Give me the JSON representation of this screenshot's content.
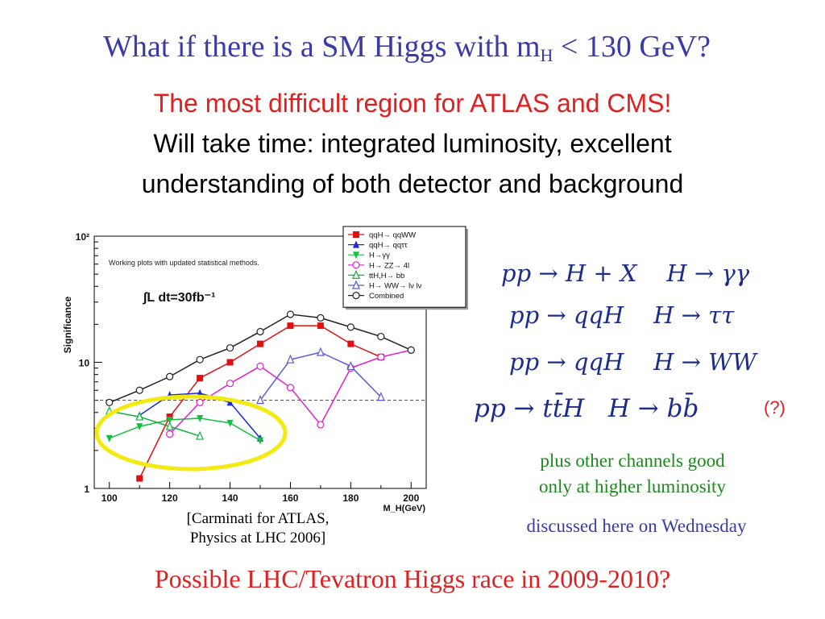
{
  "slide": {
    "title_main": "What if there is a SM Higgs with m",
    "title_sub": "H",
    "title_tail": " < 130 GeV?",
    "line1": "The most difficult region for ATLAS and CMS!",
    "line2": "Will take time: integrated luminosity, excellent",
    "line3": "understanding of both detector and background",
    "caption_line1": "[Carminati for ATLAS,",
    "caption_line2": "Physics at LHC 2006]",
    "channels": [
      {
        "prod": "pp → H + X",
        "decay": "H → γγ"
      },
      {
        "prod": "pp → qqH",
        "decay": "H → ττ"
      },
      {
        "prod": "pp → qqH",
        "decay": "H → WW"
      },
      {
        "prod": "pp → tt̄H",
        "decay": "H → bb̄"
      }
    ],
    "question_mark": "(?)",
    "green_line1": "plus other channels good",
    "green_line2": "only at  higher luminosity",
    "wednesday": "discussed here on Wednesday",
    "bottom": "Possible LHC/Tevatron Higgs race in 2009-2010?"
  },
  "chart_data": {
    "type": "line",
    "annotation": "Working plots with updated statistical methods.",
    "luminosity_label": "∫L dt=30fb⁻¹",
    "xlabel": "M_H(GeV)",
    "ylabel": "Significance",
    "xlim": [
      95,
      205
    ],
    "ylim": [
      1,
      100
    ],
    "yscale": "log",
    "x_ticks": [
      100,
      120,
      140,
      160,
      180,
      200
    ],
    "y_ticks": [
      {
        "v": 1,
        "label": "1"
      },
      {
        "v": 10,
        "label": "10"
      },
      {
        "v": 100,
        "label": "10²"
      }
    ],
    "reference_line": 5,
    "legend_position": "top-right",
    "highlight": "ellipse around low-mass region (100-150 GeV)",
    "series": [
      {
        "name": "qqH→ qqWW",
        "color": "#e01010",
        "marker": "square-filled",
        "x": [
          110,
          120,
          130,
          140,
          150,
          160,
          170,
          180,
          190
        ],
        "y": [
          1.2,
          3.7,
          7.5,
          10,
          14,
          19.5,
          19.5,
          14,
          11
        ]
      },
      {
        "name": "qqH→ qqττ",
        "color": "#1a2ad8",
        "marker": "triangle-up-filled",
        "x": [
          110,
          120,
          130,
          140,
          150
        ],
        "y": [
          3.8,
          5.5,
          5.7,
          4.8,
          2.5
        ]
      },
      {
        "name": "H→γγ",
        "color": "#10c040",
        "marker": "triangle-down-filled",
        "x": [
          100,
          110,
          120,
          130,
          140,
          150
        ],
        "y": [
          2.5,
          3.1,
          3.5,
          3.6,
          3.3,
          2.4
        ]
      },
      {
        "name": "H→ ZZ→ 4l",
        "color": "#e020d0",
        "marker": "circle-open",
        "x": [
          120,
          130,
          140,
          150,
          160,
          170,
          180,
          190,
          200
        ],
        "y": [
          2.7,
          4.8,
          6.8,
          9.3,
          6.3,
          3.2,
          9.0,
          11,
          12.5
        ]
      },
      {
        "name": "ttH,H→ bb",
        "color": "#10b040",
        "marker": "triangle-up-open",
        "x": [
          100,
          110,
          120,
          130
        ],
        "y": [
          4.1,
          3.7,
          3.1,
          2.6
        ]
      },
      {
        "name": "H→ WW→ lν lν",
        "color": "#5a5ad8",
        "marker": "triangle-up-open",
        "x": [
          150,
          160,
          170,
          180,
          190
        ],
        "y": [
          5.0,
          10.5,
          12,
          9.3,
          5.3
        ]
      },
      {
        "name": "Combined",
        "color": "#222222",
        "marker": "circle-open",
        "x": [
          100,
          110,
          120,
          130,
          140,
          150,
          160,
          170,
          180,
          190,
          200
        ],
        "y": [
          4.8,
          6,
          7.7,
          10.5,
          13,
          17.5,
          24,
          22.5,
          19,
          16,
          12.5
        ]
      }
    ]
  }
}
